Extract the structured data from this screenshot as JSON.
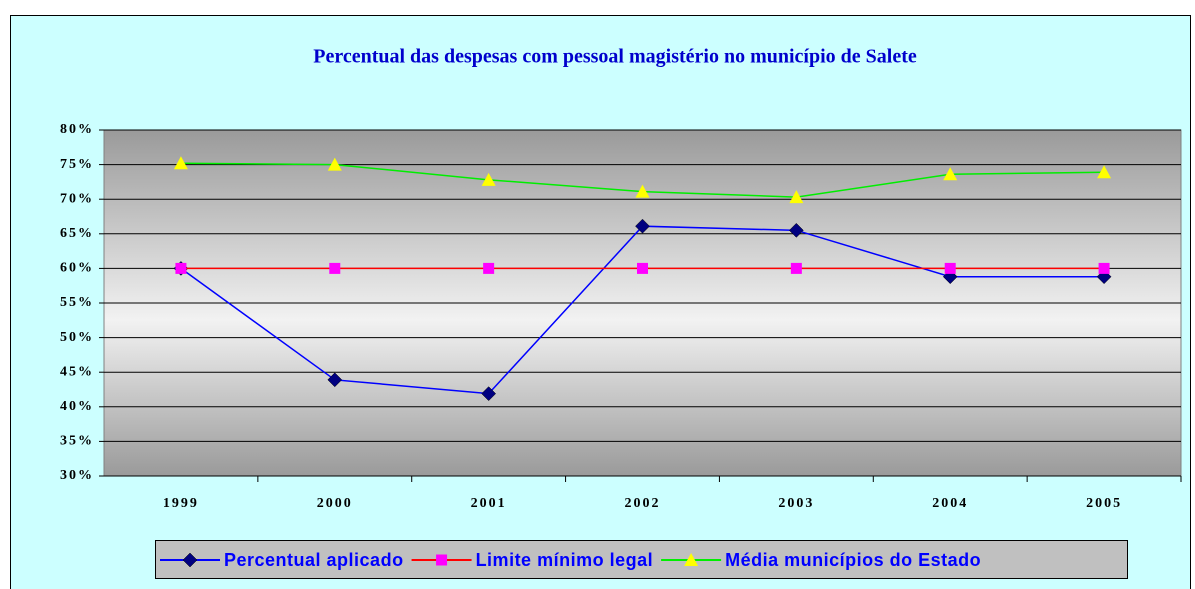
{
  "chart_data": {
    "type": "line",
    "title": "Percentual das despesas com pessoal magistério no município de Salete",
    "categories": [
      "1999",
      "2000",
      "2001",
      "2002",
      "2003",
      "2004",
      "2005"
    ],
    "series": [
      {
        "name": "Percentual aplicado",
        "color": "#0000ff",
        "marker": "diamond",
        "marker_color": "#000080",
        "values": [
          60,
          43.9,
          41.9,
          66.1,
          65.5,
          58.8,
          58.8
        ]
      },
      {
        "name": "Limite mínimo legal",
        "color": "#ff0000",
        "marker": "square",
        "marker_color": "#ff00ff",
        "values": [
          60,
          60,
          60,
          60,
          60,
          60,
          60
        ]
      },
      {
        "name": "Média municípios do Estado",
        "color": "#00ee00",
        "marker": "triangle",
        "marker_color": "#ffff00",
        "values": [
          75.2,
          75.0,
          72.8,
          71.1,
          70.3,
          73.6,
          73.9
        ]
      }
    ],
    "ylim": [
      30,
      80
    ],
    "yticks": [
      {
        "value": 30,
        "label": "30%"
      },
      {
        "value": 35,
        "label": "35%"
      },
      {
        "value": 40,
        "label": "40%"
      },
      {
        "value": 45,
        "label": "45%"
      },
      {
        "value": 50,
        "label": "50%"
      },
      {
        "value": 55,
        "label": "55%"
      },
      {
        "value": 60,
        "label": "60%"
      },
      {
        "value": 65,
        "label": "65%"
      },
      {
        "value": 70,
        "label": "70%"
      },
      {
        "value": 75,
        "label": "75%"
      },
      {
        "value": 80,
        "label": "80%"
      }
    ],
    "grid": true,
    "legend": "bottom"
  }
}
